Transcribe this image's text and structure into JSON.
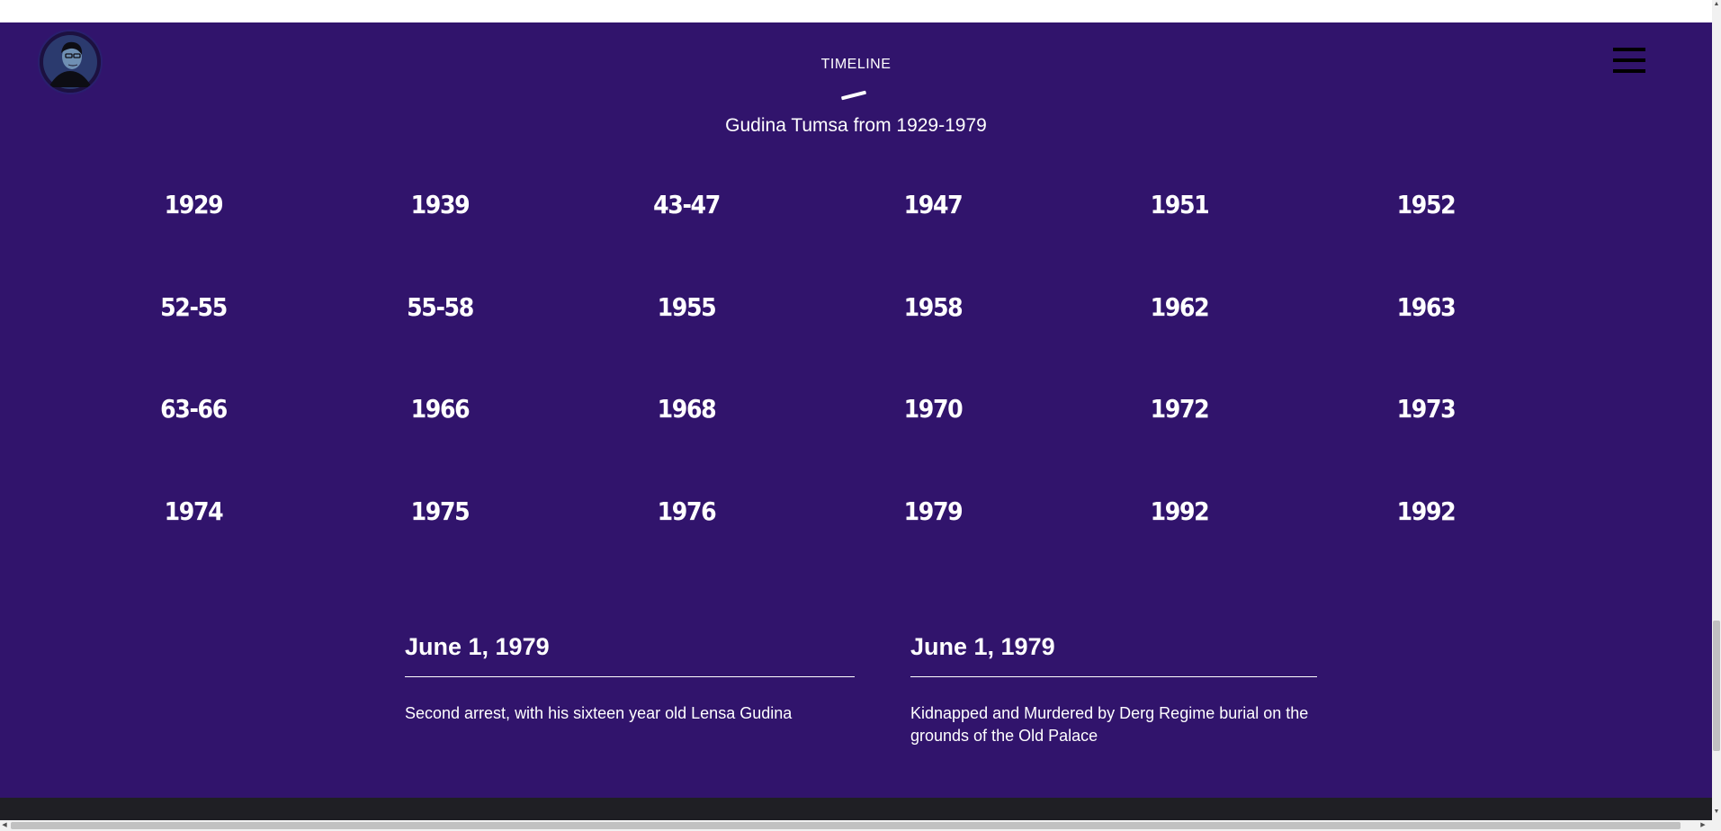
{
  "header": {
    "eyebrow": "TIMELINE",
    "subtitle": "Gudina Tumsa from 1929-1979",
    "avatar_icon": "portrait-avatar-icon",
    "menu_icon": "hamburger-menu-icon"
  },
  "timeline": {
    "years": [
      "1929",
      "1939",
      "43-47",
      "1947",
      "1951",
      "1952",
      "52-55",
      "55-58",
      "1955",
      "1958",
      "1962",
      "1963",
      "63-66",
      "1966",
      "1968",
      "1970",
      "1972",
      "1973",
      "1974",
      "1975",
      "1976",
      "1979",
      "1992",
      "1992"
    ]
  },
  "events": [
    {
      "date": "June 1, 1979",
      "text": "Second arrest, with his sixteen year old Lensa Gudina"
    },
    {
      "date": "June 1, 1979",
      "text": "Kidnapped and Murdered by Derg Regime burial on the grounds of the Old Palace"
    }
  ],
  "colors": {
    "section_background": "#31146c",
    "text": "#ffffff",
    "footer_background": "#1f1f24"
  },
  "scrollbars": {
    "up_arrow": "▲",
    "down_arrow": "▼",
    "left_arrow": "◀",
    "right_arrow": "▶"
  }
}
